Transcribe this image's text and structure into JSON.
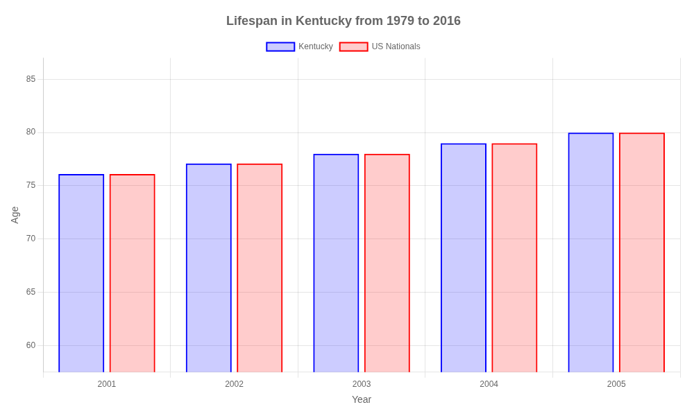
{
  "chart_data": {
    "type": "bar",
    "title": "Lifespan in Kentucky from 1979 to 2016",
    "x_label": "Year",
    "y_label": "Age",
    "categories": [
      "2001",
      "2002",
      "2003",
      "2004",
      "2005"
    ],
    "series": [
      {
        "name": "Kentucky",
        "color": "#0000ff",
        "values": [
          76.1,
          77.1,
          78.0,
          79.0,
          80.0
        ]
      },
      {
        "name": "US Nationals",
        "color": "#ff0000",
        "values": [
          76.1,
          77.1,
          78.0,
          79.0,
          80.0
        ]
      }
    ],
    "ylim": [
      57.5,
      87
    ],
    "yticks": [
      60,
      65,
      70,
      75,
      80,
      85
    ],
    "grid": true,
    "legend": "top"
  }
}
